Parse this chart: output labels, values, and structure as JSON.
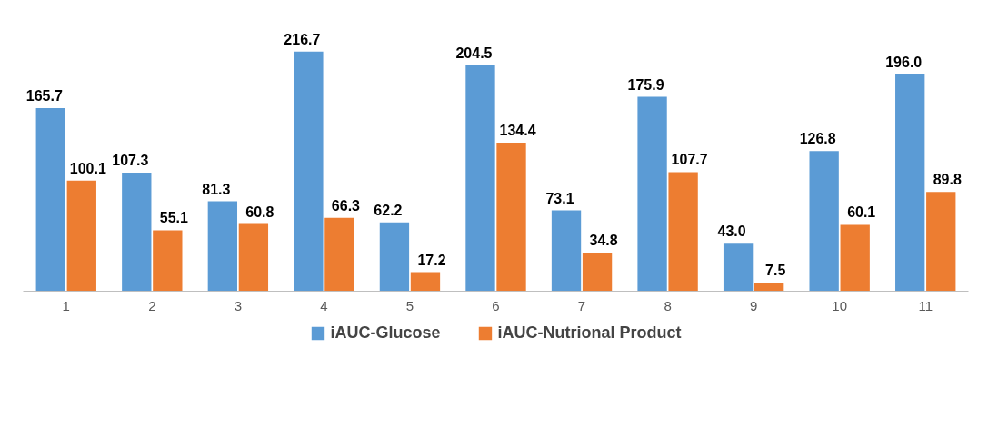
{
  "chart_data": {
    "type": "bar",
    "categories": [
      "1",
      "2",
      "3",
      "4",
      "5",
      "6",
      "7",
      "8",
      "9",
      "10",
      "11"
    ],
    "series": [
      {
        "name": "iAUC-Glucose",
        "color": "#5b9bd5",
        "values": [
          165.7,
          107.3,
          81.3,
          216.7,
          62.2,
          204.5,
          73.1,
          175.9,
          43.0,
          126.8,
          196.0
        ],
        "value_labels": [
          "165.7",
          "107.3",
          "81.3",
          "216.7",
          "62.2",
          "204.5",
          "73.1",
          "175.9",
          "43.0",
          "126.8",
          "196.0"
        ]
      },
      {
        "name": "iAUC-Nutrional Product",
        "color": "#ed7d31",
        "values": [
          100.1,
          55.1,
          60.8,
          66.3,
          17.2,
          134.4,
          34.8,
          107.7,
          7.5,
          60.1,
          89.8
        ],
        "value_labels": [
          "100.1",
          "55.1",
          "60.8",
          "66.3",
          "17.2",
          "134.4",
          "34.8",
          "107.7",
          "7.5",
          "60.1",
          "89.8"
        ]
      }
    ],
    "tick_labels": "x",
    "legend": "bottom"
  }
}
